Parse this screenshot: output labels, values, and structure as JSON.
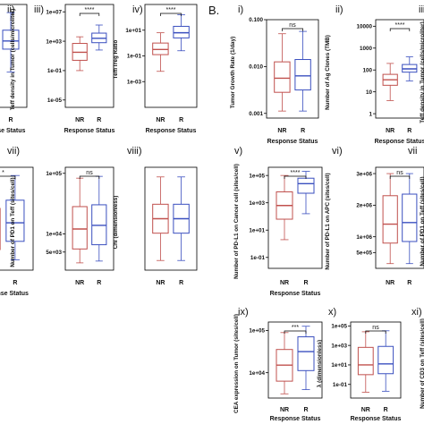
{
  "figure": {
    "section_label": "B."
  },
  "colors": {
    "NR": "#c0504d",
    "R": "#3a4fbf",
    "axis": "#000000",
    "text": "#111111"
  },
  "chart_data": [
    {
      "type": "box",
      "panel_id": "ii",
      "panel": "ii)",
      "ylabel": "",
      "xlabel": "Response Status",
      "categories": [
        "NR",
        "R"
      ],
      "yscale": "log",
      "ylim_log10": [
        -1.9,
        1.9
      ],
      "yticks": [],
      "sig": "",
      "boxes": [
        {
          "name": "NR",
          "q1_log10": -0.85,
          "median_log10": -0.55,
          "q3_log10": -0.25,
          "wlo_log10": -1.6,
          "whi_log10": 0.2
        },
        {
          "name": "R",
          "q1_log10": 0.25,
          "median_log10": 0.55,
          "q3_log10": 0.95,
          "wlo_log10": -0.6,
          "whi_log10": 1.6
        }
      ]
    },
    {
      "type": "box",
      "panel_id": "iii",
      "panel": "iii)",
      "ylabel": "Teff density in Tumor (cells/microliter)",
      "xlabel": "Response Status",
      "categories": [
        "NR",
        "R"
      ],
      "yscale": "log",
      "ylim_log10": [
        -6,
        8
      ],
      "yticks": [
        "1e+07",
        "1e+03",
        "1e-01",
        "1e-05"
      ],
      "sig": "****",
      "boxes": [
        {
          "name": "NR",
          "q1_log10": 0.4,
          "median_log10": 1.5,
          "q3_log10": 2.7,
          "wlo_log10": -1.0,
          "whi_log10": 3.6
        },
        {
          "name": "R",
          "q1_log10": 2.8,
          "median_log10": 3.4,
          "q3_log10": 4.1,
          "wlo_log10": 1.8,
          "whi_log10": 5.2
        }
      ]
    },
    {
      "type": "box",
      "panel_id": "iv",
      "panel": "iv)",
      "ylabel": "Teff/Treg Ratio",
      "xlabel": "Response Status",
      "categories": [
        "NR",
        "R"
      ],
      "yscale": "log",
      "ylim_log10": [
        -5,
        3
      ],
      "yticks": [
        "1e+01",
        "1e-01",
        "1e-03"
      ],
      "sig": "****",
      "boxes": [
        {
          "name": "NR",
          "q1_log10": -0.9,
          "median_log10": -0.5,
          "q3_log10": 0.0,
          "wlo_log10": -2.2,
          "whi_log10": 0.8
        },
        {
          "name": "R",
          "q1_log10": 0.4,
          "median_log10": 0.8,
          "q3_log10": 1.3,
          "wlo_log10": -0.6,
          "whi_log10": 2.2
        }
      ]
    },
    {
      "type": "box",
      "panel_id": "vii_l",
      "panel": "vii)",
      "ylabel": "",
      "xlabel": "Response Status",
      "categories": [
        "NR",
        "R"
      ],
      "yscale": "log",
      "ylim_log10": [
        0,
        5
      ],
      "yticks": [],
      "sig": "*",
      "boxes": [
        {
          "name": "NR",
          "q1_log10": 1.0,
          "median_log10": 1.9,
          "q3_log10": 3.0,
          "wlo_log10": 0.2,
          "whi_log10": 4.2
        },
        {
          "name": "R",
          "q1_log10": 1.4,
          "median_log10": 2.3,
          "q3_log10": 3.4,
          "wlo_log10": 0.5,
          "whi_log10": 4.6
        }
      ]
    },
    {
      "type": "box",
      "panel_id": "pd1teff",
      "panel": "",
      "ylabel": "Number of PD1 on Teff (sites/cell)",
      "xlabel": "",
      "categories": [
        "NR",
        "R"
      ],
      "yscale": "log",
      "ylim_log10": [
        3.4,
        5.1
      ],
      "yticks": [
        "1e+05",
        "1e+04",
        "5e+03"
      ],
      "sig": "ns",
      "boxes": [
        {
          "name": "NR",
          "q1_log10": 3.75,
          "median_log10": 4.08,
          "q3_log10": 4.45,
          "wlo_log10": 3.52,
          "whi_log10": 4.92
        },
        {
          "name": "R",
          "q1_log10": 3.82,
          "median_log10": 4.14,
          "q3_log10": 4.48,
          "wlo_log10": 3.55,
          "whi_log10": 4.95
        }
      ]
    },
    {
      "type": "box",
      "panel_id": "viii",
      "panel": "viii)",
      "ylabel": "Chi (dimensionless)",
      "xlabel": "",
      "categories": [
        "NR",
        "R"
      ],
      "yscale": "log",
      "ylim_log10": [
        -1.6,
        1.6
      ],
      "yticks": [],
      "sig": "",
      "boxes": [
        {
          "name": "NR",
          "q1_log10": -0.45,
          "median_log10": 0.0,
          "q3_log10": 0.45,
          "wlo_log10": -1.3,
          "whi_log10": 1.3
        },
        {
          "name": "R",
          "q1_log10": -0.45,
          "median_log10": 0.0,
          "q3_log10": 0.45,
          "wlo_log10": -1.3,
          "whi_log10": 1.3
        }
      ]
    },
    {
      "type": "box",
      "panel_id": "i",
      "panel": "i)",
      "ylabel": "Tumor Growth Rate (1/day)",
      "xlabel": "Response Status",
      "categories": [
        "NR",
        "R"
      ],
      "yscale": "log",
      "ylim_log10": [
        -3.1,
        -1.0
      ],
      "yticks": [
        "0.100",
        "0.010",
        "0.001"
      ],
      "sig": "ns",
      "boxes": [
        {
          "name": "NR",
          "q1_log10": -2.55,
          "median_log10": -2.25,
          "q3_log10": -1.9,
          "wlo_log10": -2.95,
          "whi_log10": -1.3
        },
        {
          "name": "R",
          "q1_log10": -2.5,
          "median_log10": -2.2,
          "q3_log10": -1.85,
          "wlo_log10": -2.95,
          "whi_log10": -1.25
        }
      ]
    },
    {
      "type": "box",
      "panel_id": "iiB",
      "panel": "ii)",
      "ylabel": "Number of Ag Clones (TMB)",
      "xlabel": "Response Status",
      "categories": [
        "NR",
        "R"
      ],
      "yscale": "log",
      "ylim_log10": [
        -0.2,
        4.3
      ],
      "yticks": [
        "10000",
        "1000",
        "100",
        "10",
        "1"
      ],
      "sig": "****",
      "boxes": [
        {
          "name": "NR",
          "q1_log10": 1.3,
          "median_log10": 1.55,
          "q3_log10": 1.8,
          "wlo_log10": 0.6,
          "whi_log10": 2.3
        },
        {
          "name": "R",
          "q1_log10": 1.9,
          "median_log10": 2.05,
          "q3_log10": 2.25,
          "wlo_log10": 1.5,
          "whi_log10": 2.6
        }
      ]
    },
    {
      "type": "box",
      "panel_id": "iiiB",
      "panel": "iii)",
      "ylabel": "Teff density in Tumor (cells/microliter)",
      "xlabel": "",
      "categories": [
        "NR",
        "R"
      ],
      "yscale": "log",
      "ylim_log10": [
        -6,
        8
      ],
      "yticks": [],
      "sig": "",
      "boxes": []
    },
    {
      "type": "box",
      "panel_id": "v",
      "panel": "v)",
      "ylabel": "Number of PD-L1 on Cancer cell (sites/cell)",
      "xlabel": "Response Status",
      "categories": [
        "NR",
        "R"
      ],
      "yscale": "log",
      "ylim_log10": [
        -1.8,
        5.6
      ],
      "yticks": [
        "1e+05",
        "1e+03",
        "1e+01",
        "1e-01"
      ],
      "sig": "****",
      "boxes": [
        {
          "name": "NR",
          "q1_log10": 1.8,
          "median_log10": 2.8,
          "q3_log10": 3.8,
          "wlo_log10": 0.3,
          "whi_log10": 5.0
        },
        {
          "name": "R",
          "q1_log10": 3.7,
          "median_log10": 4.4,
          "q3_log10": 4.8,
          "wlo_log10": 2.2,
          "whi_log10": 5.3
        }
      ]
    },
    {
      "type": "box",
      "panel_id": "vi",
      "panel": "vi)",
      "ylabel": "Number of PD-L1 on APC (sites/cell)",
      "xlabel": "",
      "categories": [
        "NR",
        "R"
      ],
      "yscale": "linear",
      "ylim": [
        0,
        3200000
      ],
      "yticks": [
        "3e+06",
        "2e+06",
        "1e+06",
        "5e+05"
      ],
      "sig": "ns",
      "boxes": [
        {
          "name": "NR",
          "q1": 800000,
          "median": 1400000,
          "q3": 2300000,
          "wlo": 150000,
          "whi": 3000000
        },
        {
          "name": "R",
          "q1": 850000,
          "median": 1450000,
          "q3": 2350000,
          "wlo": 150000,
          "whi": 3000000
        }
      ]
    },
    {
      "type": "box",
      "panel_id": "vii_r",
      "panel": "vii",
      "ylabel": "Number of PD1 on Teff (sites/cell)",
      "xlabel": "",
      "categories": [
        "NR",
        "R"
      ],
      "yscale": "log",
      "ylim_log10": [
        3.4,
        5.1
      ],
      "yticks": [],
      "sig": "",
      "boxes": []
    },
    {
      "type": "box",
      "panel_id": "ix",
      "panel": "ix)",
      "ylabel": "CEA expression on Tumor (sites/cell)",
      "xlabel": "Response Status",
      "categories": [
        "NR",
        "R"
      ],
      "yscale": "log",
      "ylim_log10": [
        3.4,
        5.2
      ],
      "yticks": [
        "1e+05",
        "1e+04"
      ],
      "sig": "***",
      "boxes": [
        {
          "name": "NR",
          "q1_log10": 3.8,
          "median_log10": 4.18,
          "q3_log10": 4.55,
          "wlo_log10": 3.5,
          "whi_log10": 4.95
        },
        {
          "name": "R",
          "q1_log10": 4.05,
          "median_log10": 4.5,
          "q3_log10": 4.85,
          "wlo_log10": 3.6,
          "whi_log10": 5.1
        }
      ]
    },
    {
      "type": "box",
      "panel_id": "x",
      "panel": "x)",
      "ylabel": "λ (dimensionless)",
      "xlabel": "Response Status",
      "categories": [
        "NR",
        "R"
      ],
      "yscale": "log",
      "ylim_log10": [
        -2.4,
        5.4
      ],
      "yticks": [
        "1e+05",
        "1e+03",
        "1e+01",
        "1e-01"
      ],
      "sig": "ns",
      "boxes": [
        {
          "name": "NR",
          "q1_log10": 0.0,
          "median_log10": 1.0,
          "q3_log10": 2.8,
          "wlo_log10": -1.8,
          "whi_log10": 4.4
        },
        {
          "name": "R",
          "q1_log10": 0.1,
          "median_log10": 1.1,
          "q3_log10": 2.9,
          "wlo_log10": -1.7,
          "whi_log10": 4.5
        }
      ]
    },
    {
      "type": "box",
      "panel_id": "xi",
      "panel": "xi)",
      "ylabel": "Number of CD3 on Teff (sites/cell)",
      "xlabel": "",
      "categories": [
        "NR",
        "R"
      ],
      "yscale": "log",
      "ylim_log10": [
        -2.4,
        5.4
      ],
      "yticks": [],
      "sig": "",
      "boxes": []
    }
  ]
}
